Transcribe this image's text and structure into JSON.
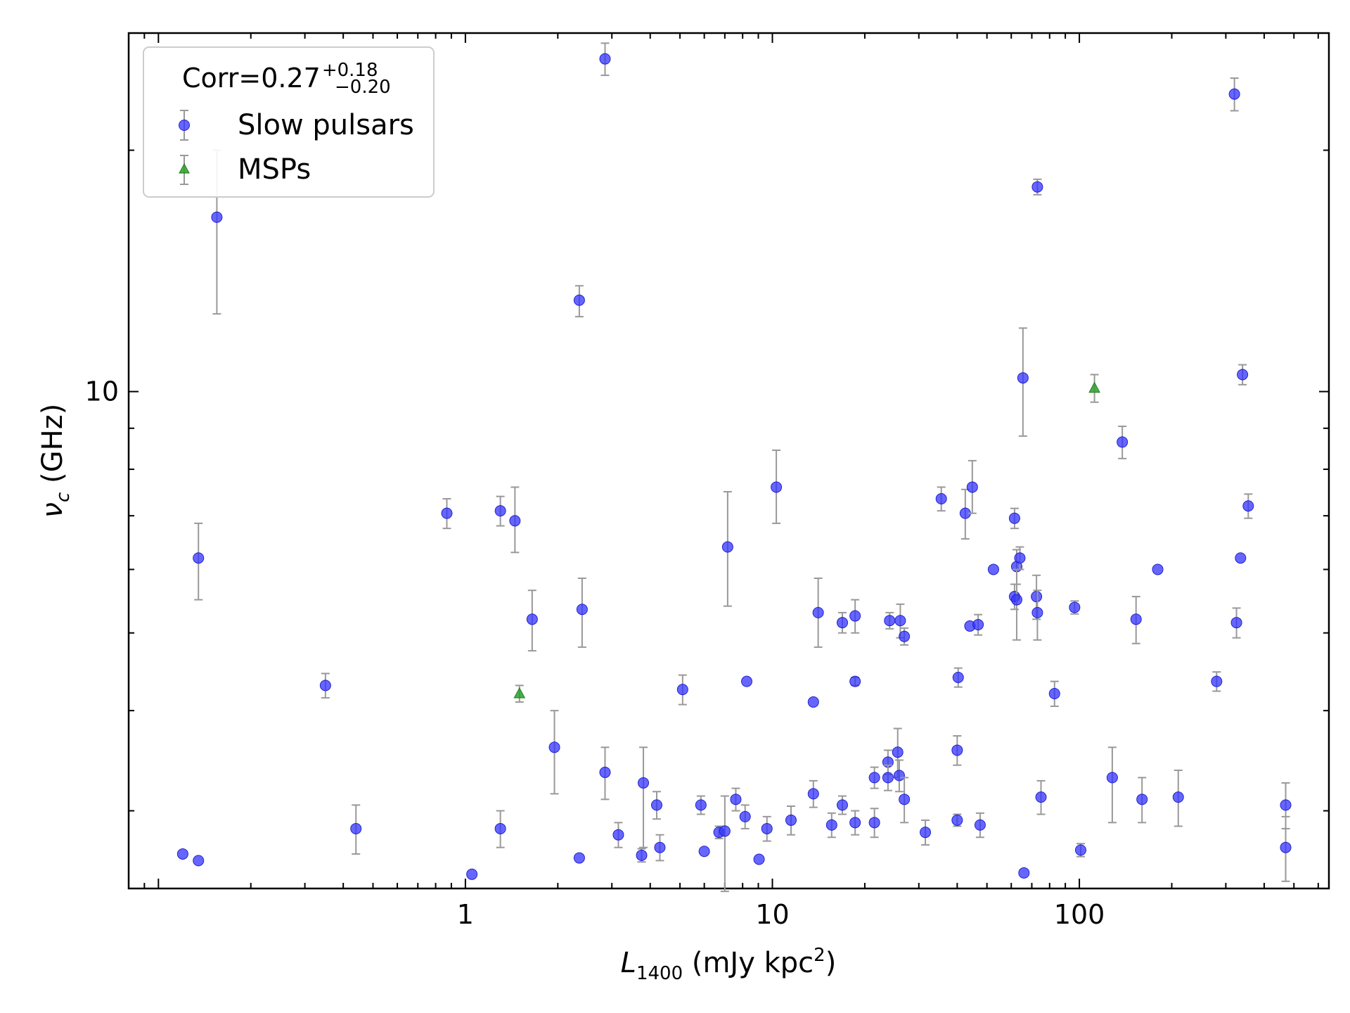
{
  "chart_data": {
    "type": "scatter",
    "xscale": "log",
    "yscale": "log",
    "xlim": [
      0.08,
      650
    ],
    "ylim": [
      2.4,
      28
    ],
    "xlabel": {
      "main": "L",
      "sub": "1400",
      "rest": " (mJy kpc",
      "sup": "2",
      "end": ")"
    },
    "ylabel": {
      "main": "ν",
      "sub": "c",
      "rest": " (GHz)"
    },
    "x_major_ticks": [
      {
        "value": 1,
        "label": "1"
      },
      {
        "value": 10,
        "label": "10"
      },
      {
        "value": 100,
        "label": "100"
      }
    ],
    "y_major_ticks": [
      {
        "value": 10,
        "label": "10"
      }
    ],
    "legend": {
      "position": "top-left",
      "title": {
        "prefix": "Corr=0.27",
        "sup": "+0.18",
        "sub": "−0.20"
      },
      "entries": [
        {
          "label": "Slow pulsars",
          "marker": "circle",
          "color": "#3333ff"
        },
        {
          "label": "MSPs",
          "marker": "triangle",
          "color": "#33aa33"
        }
      ]
    },
    "colors": {
      "slow": "#3333ff",
      "msp": "#2ca02c",
      "errorbar": "#999999"
    },
    "series": [
      {
        "name": "Slow pulsars",
        "marker": "circle",
        "points": [
          [
            0.12,
            2.65,
            0,
            0
          ],
          [
            0.135,
            2.6,
            0,
            0
          ],
          [
            0.135,
            6.2,
            0.7,
            0.65
          ],
          [
            0.155,
            16.5,
            4.0,
            3.5
          ],
          [
            0.35,
            4.3,
            0.15,
            0.15
          ],
          [
            0.44,
            2.85,
            0.2,
            0.2
          ],
          [
            0.87,
            7.05,
            0.3,
            0.3
          ],
          [
            1.05,
            2.5,
            0,
            0
          ],
          [
            1.3,
            7.1,
            0.3,
            0.3
          ],
          [
            1.3,
            2.85,
            0.15,
            0.15
          ],
          [
            1.45,
            6.9,
            0.6,
            0.7
          ],
          [
            1.65,
            5.2,
            0.45,
            0.45
          ],
          [
            1.95,
            3.6,
            0.45,
            0.4
          ],
          [
            2.35,
            2.62,
            0,
            0
          ],
          [
            2.35,
            13.0,
            0.6,
            0.55
          ],
          [
            2.4,
            5.35,
            0.55,
            0.5
          ],
          [
            2.85,
            26.0,
            1.2,
            1.2
          ],
          [
            2.85,
            3.35,
            0.25,
            0.25
          ],
          [
            3.15,
            2.8,
            0.1,
            0.1
          ],
          [
            3.75,
            2.64,
            0.05,
            0.05
          ],
          [
            3.8,
            3.25,
            0.55,
            0.35
          ],
          [
            4.2,
            3.05,
            0.12,
            0.12
          ],
          [
            4.3,
            2.7,
            0.1,
            0.1
          ],
          [
            5.1,
            4.25,
            0.18,
            0.18
          ],
          [
            5.85,
            3.05,
            0.08,
            0.08
          ],
          [
            6.0,
            2.67,
            0,
            0
          ],
          [
            6.7,
            2.82,
            0.05,
            0.05
          ],
          [
            7.0,
            2.83,
            0.45,
            0.3
          ],
          [
            7.15,
            6.4,
            1.0,
            1.1
          ],
          [
            7.6,
            3.1,
            0.1,
            0.1
          ],
          [
            8.15,
            2.95,
            0.1,
            0.1
          ],
          [
            8.25,
            4.35,
            0,
            0
          ],
          [
            9.05,
            2.61,
            0,
            0
          ],
          [
            9.6,
            2.85,
            0.1,
            0.1
          ],
          [
            10.3,
            7.6,
            0.75,
            0.85
          ],
          [
            11.5,
            2.92,
            0.12,
            0.12
          ],
          [
            13.6,
            4.1,
            0,
            0
          ],
          [
            13.6,
            3.15,
            0.12,
            0.12
          ],
          [
            14.1,
            5.3,
            0.5,
            0.55
          ],
          [
            15.6,
            2.88,
            0.1,
            0.1
          ],
          [
            16.9,
            5.15,
            0.15,
            0.15
          ],
          [
            16.9,
            3.05,
            0.08,
            0.08
          ],
          [
            18.6,
            5.25,
            0.25,
            0.25
          ],
          [
            18.6,
            4.35,
            0.05,
            0.05
          ],
          [
            18.6,
            2.9,
            0.1,
            0.1
          ],
          [
            21.5,
            3.3,
            0.1,
            0.1
          ],
          [
            21.5,
            2.9,
            0.12,
            0.12
          ],
          [
            23.8,
            3.45,
            0.12,
            0.12
          ],
          [
            23.8,
            3.3,
            0.12,
            0.12
          ],
          [
            24.1,
            5.18,
            0.12,
            0.12
          ],
          [
            25.6,
            3.55,
            0.25,
            0.25
          ],
          [
            25.9,
            3.32,
            0.15,
            0.15
          ],
          [
            26.1,
            5.18,
            0.25,
            0.25
          ],
          [
            26.9,
            3.1,
            0.2,
            0.2
          ],
          [
            26.9,
            4.95,
            0.12,
            0.12
          ],
          [
            31.5,
            2.82,
            0.1,
            0.1
          ],
          [
            35.5,
            7.35,
            0.25,
            0.25
          ],
          [
            40.0,
            2.92,
            0.05,
            0.05
          ],
          [
            40.0,
            3.57,
            0.15,
            0.15
          ],
          [
            40.3,
            4.4,
            0.12,
            0.12
          ],
          [
            42.5,
            7.05,
            0.5,
            0.5
          ],
          [
            44.0,
            5.1,
            0,
            0
          ],
          [
            44.8,
            7.6,
            0.55,
            0.6
          ],
          [
            46.8,
            5.12,
            0.15,
            0.15
          ],
          [
            47.5,
            2.88,
            0.1,
            0.1
          ],
          [
            52.5,
            6.0,
            0,
            0
          ],
          [
            61.5,
            6.95,
            0.2,
            0.2
          ],
          [
            61.5,
            5.55,
            0.2,
            0.2
          ],
          [
            62.5,
            6.05,
            0.3,
            0.3
          ],
          [
            62.5,
            5.5,
            0.6,
            0.5
          ],
          [
            64.0,
            6.2,
            0.2,
            0.2
          ],
          [
            65.5,
            10.4,
            1.6,
            1.6
          ],
          [
            66.0,
            2.51,
            0,
            0
          ],
          [
            72.5,
            5.55,
            0.35,
            0.35
          ],
          [
            73.0,
            5.3,
            0.4,
            0.35
          ],
          [
            73.0,
            18.0,
            0.4,
            0.4
          ],
          [
            75.0,
            3.12,
            0.15,
            0.15
          ],
          [
            83.0,
            4.2,
            0.15,
            0.15
          ],
          [
            96.5,
            5.38,
            0.1,
            0.1
          ],
          [
            101.0,
            2.68,
            0.05,
            0.05
          ],
          [
            128.0,
            3.3,
            0.4,
            0.3
          ],
          [
            138.0,
            8.65,
            0.4,
            0.4
          ],
          [
            153.0,
            5.2,
            0.35,
            0.35
          ],
          [
            160.0,
            3.1,
            0.2,
            0.2
          ],
          [
            180.0,
            6.0,
            0,
            0
          ],
          [
            210.0,
            3.12,
            0.25,
            0.25
          ],
          [
            280.0,
            4.35,
            0.12,
            0.12
          ],
          [
            320.0,
            23.5,
            1.1,
            1.1
          ],
          [
            325.0,
            5.15,
            0.22,
            0.22
          ],
          [
            335.0,
            6.2,
            0,
            0
          ],
          [
            340.0,
            10.5,
            0.3,
            0.3
          ],
          [
            355.0,
            7.2,
            0.25,
            0.25
          ],
          [
            470.0,
            3.05,
            0.2,
            0.2
          ],
          [
            470.0,
            2.7,
            0.25,
            0.25
          ]
        ]
      },
      {
        "name": "MSPs",
        "marker": "triangle",
        "points": [
          [
            1.5,
            4.2,
            0.1,
            0.1
          ],
          [
            112.0,
            10.1,
            0.4,
            0.4
          ]
        ]
      }
    ]
  }
}
